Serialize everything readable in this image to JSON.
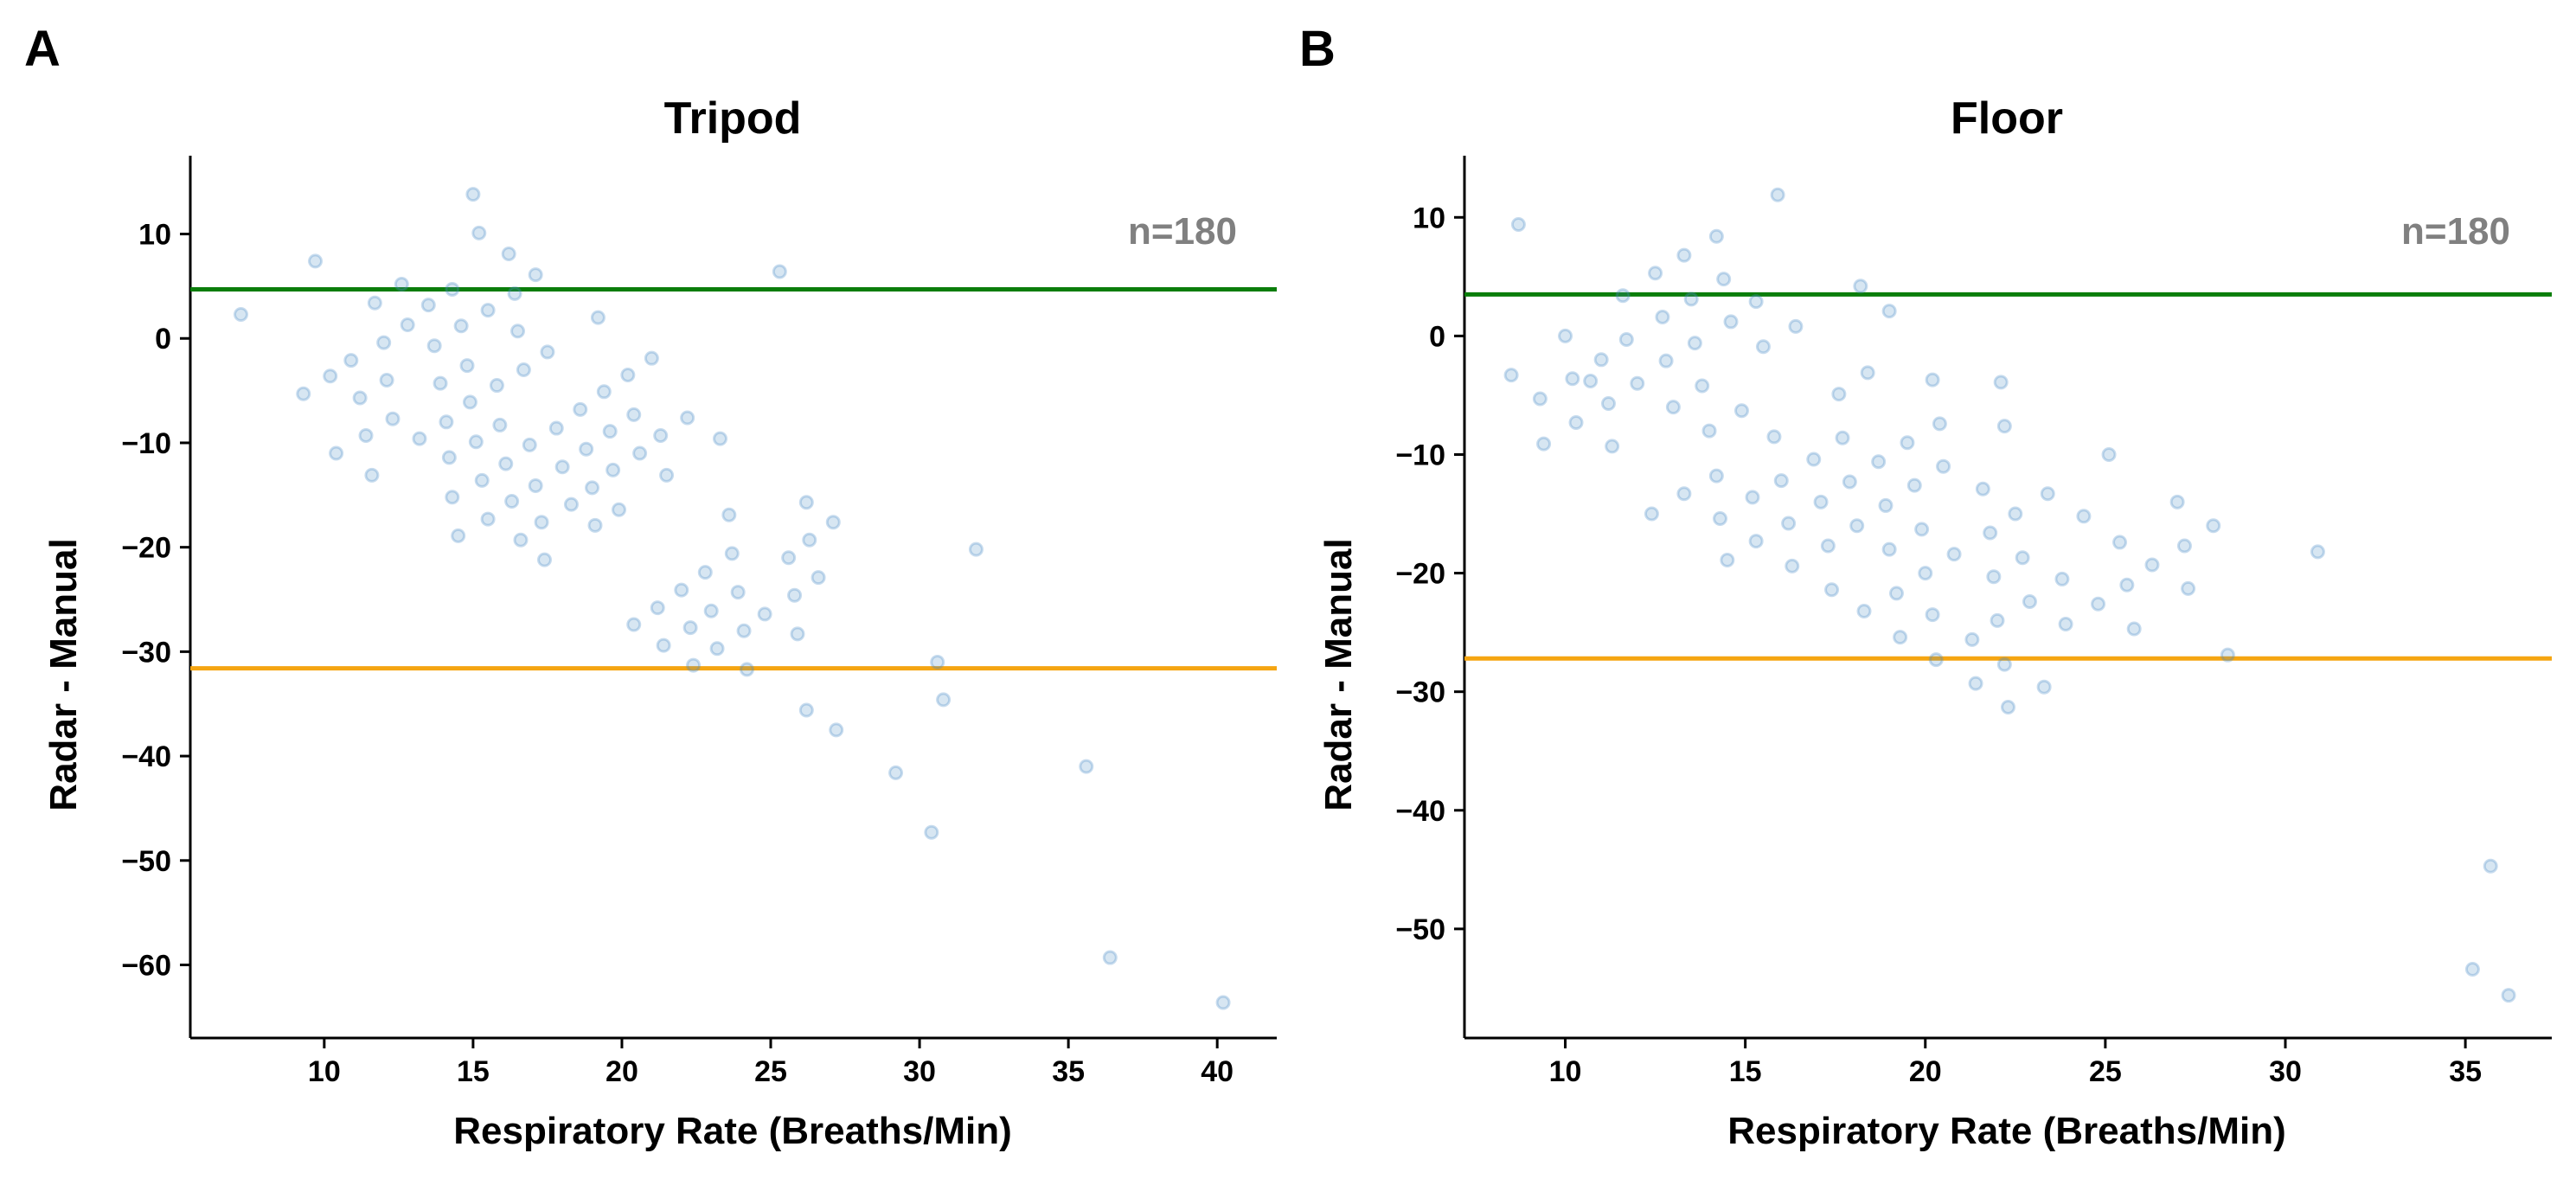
{
  "colors": {
    "points": "#4a8cc6",
    "upper_line": "#0a7d0a",
    "lower_line": "#f5a511",
    "annotation": "#808080",
    "axis": "#000000"
  },
  "chart_data": [
    {
      "panel_letter": "A",
      "type": "scatter",
      "title": "Tripod",
      "xlabel": "Respiratory Rate (Breaths/Min)",
      "ylabel": "Radar - Manual",
      "xlim": [
        5.5,
        42
      ],
      "ylim": [
        -67,
        17.5
      ],
      "xticks": [
        10,
        15,
        20,
        25,
        30,
        35,
        40
      ],
      "yticks": [
        10,
        0,
        -10,
        -20,
        -30,
        -40,
        -50,
        -60
      ],
      "grid": false,
      "annotation": "n=180",
      "upper_limit": 4.7,
      "lower_limit": -31.6,
      "points": [
        [
          7.2,
          2.3
        ],
        [
          9.3,
          -5.3
        ],
        [
          9.7,
          7.4
        ],
        [
          10.2,
          -3.6
        ],
        [
          10.4,
          -11
        ],
        [
          10.9,
          -2.1
        ],
        [
          11.2,
          -5.7
        ],
        [
          11.4,
          -9.3
        ],
        [
          11.6,
          -13.1
        ],
        [
          11.7,
          3.4
        ],
        [
          12,
          -0.4
        ],
        [
          12.1,
          -4
        ],
        [
          12.3,
          -7.7
        ],
        [
          12.6,
          5.2
        ],
        [
          12.8,
          1.3
        ],
        [
          13.2,
          -9.6
        ],
        [
          13.5,
          3.2
        ],
        [
          13.7,
          -0.7
        ],
        [
          13.9,
          -4.3
        ],
        [
          14.1,
          -8
        ],
        [
          14.2,
          -11.4
        ],
        [
          14.3,
          -15.2
        ],
        [
          14.3,
          4.7
        ],
        [
          14.5,
          -18.9
        ],
        [
          14.6,
          1.2
        ],
        [
          14.8,
          -2.6
        ],
        [
          14.9,
          -6.1
        ],
        [
          15,
          13.8
        ],
        [
          15.1,
          -9.9
        ],
        [
          15.2,
          10.1
        ],
        [
          15.3,
          -13.6
        ],
        [
          15.5,
          -17.3
        ],
        [
          15.5,
          2.7
        ],
        [
          15.8,
          -4.5
        ],
        [
          15.9,
          -8.3
        ],
        [
          16.1,
          -12
        ],
        [
          16.2,
          8.1
        ],
        [
          16.3,
          -15.6
        ],
        [
          16.4,
          4.3
        ],
        [
          16.6,
          -19.3
        ],
        [
          16.5,
          0.7
        ],
        [
          16.7,
          -3
        ],
        [
          16.9,
          -10.2
        ],
        [
          17.1,
          -14.1
        ],
        [
          17.1,
          6.1
        ],
        [
          17.3,
          -17.6
        ],
        [
          17.4,
          -21.2
        ],
        [
          17.5,
          -1.3
        ],
        [
          17.8,
          -8.6
        ],
        [
          18,
          -12.3
        ],
        [
          18.3,
          -15.9
        ],
        [
          18.6,
          -6.8
        ],
        [
          18.8,
          -10.6
        ],
        [
          19,
          -14.3
        ],
        [
          19.1,
          -17.9
        ],
        [
          19.2,
          2
        ],
        [
          19.4,
          -5.1
        ],
        [
          19.6,
          -8.9
        ],
        [
          19.7,
          -12.6
        ],
        [
          19.9,
          -16.4
        ],
        [
          20.2,
          -3.5
        ],
        [
          20.4,
          -7.3
        ],
        [
          20.6,
          -11
        ],
        [
          20.4,
          -27.4
        ],
        [
          21,
          -1.9
        ],
        [
          21.2,
          -25.8
        ],
        [
          21.3,
          -9.3
        ],
        [
          21.4,
          -29.4
        ],
        [
          21.5,
          -13.1
        ],
        [
          22,
          -24.1
        ],
        [
          22.2,
          -7.6
        ],
        [
          22.3,
          -27.7
        ],
        [
          22.4,
          -31.3
        ],
        [
          22.8,
          -22.4
        ],
        [
          23,
          -26.1
        ],
        [
          23.2,
          -29.7
        ],
        [
          23.3,
          -9.6
        ],
        [
          23.6,
          -16.9
        ],
        [
          23.7,
          -20.6
        ],
        [
          23.9,
          -24.3
        ],
        [
          24.1,
          -28
        ],
        [
          24.2,
          -31.7
        ],
        [
          24.8,
          -26.4
        ],
        [
          25.3,
          6.4
        ],
        [
          25.6,
          -21
        ],
        [
          25.8,
          -24.6
        ],
        [
          25.9,
          -28.3
        ],
        [
          26.2,
          -15.7
        ],
        [
          26.3,
          -19.3
        ],
        [
          26.2,
          -35.6
        ],
        [
          26.6,
          -22.9
        ],
        [
          27.1,
          -17.6
        ],
        [
          27.2,
          -37.5
        ],
        [
          29.2,
          -41.6
        ],
        [
          30.4,
          -47.3
        ],
        [
          30.6,
          -31
        ],
        [
          30.8,
          -34.6
        ],
        [
          31.9,
          -20.2
        ],
        [
          35.6,
          -41
        ],
        [
          36.4,
          -59.3
        ],
        [
          40.2,
          -63.6
        ]
      ]
    },
    {
      "panel_letter": "B",
      "type": "scatter",
      "title": "Floor",
      "xlabel": "Respiratory Rate (Breaths/Min)",
      "ylabel": "Radar - Manual",
      "xlim": [
        7.2,
        37.4
      ],
      "ylim": [
        -59.2,
        15.2
      ],
      "xticks": [
        10,
        15,
        20,
        25,
        30,
        35
      ],
      "yticks": [
        10,
        0,
        -10,
        -20,
        -30,
        -40,
        -50
      ],
      "grid": false,
      "annotation": "n=180",
      "upper_limit": 3.5,
      "lower_limit": -27.2,
      "points": [
        [
          8.5,
          -3.3
        ],
        [
          8.7,
          9.4
        ],
        [
          9.3,
          -5.3
        ],
        [
          9.4,
          -9.1
        ],
        [
          10,
          0
        ],
        [
          10.2,
          -3.6
        ],
        [
          10.3,
          -7.3
        ],
        [
          10.7,
          -3.8
        ],
        [
          11,
          -2
        ],
        [
          11.2,
          -5.7
        ],
        [
          11.3,
          -9.3
        ],
        [
          11.6,
          3.4
        ],
        [
          11.7,
          -0.3
        ],
        [
          12,
          -4
        ],
        [
          12.4,
          -15
        ],
        [
          12.5,
          5.3
        ],
        [
          12.7,
          1.6
        ],
        [
          12.8,
          -2.1
        ],
        [
          13,
          -6
        ],
        [
          13.3,
          -13.3
        ],
        [
          13.3,
          6.8
        ],
        [
          13.5,
          3.1
        ],
        [
          13.6,
          -0.6
        ],
        [
          13.8,
          -4.2
        ],
        [
          14,
          -8
        ],
        [
          14.2,
          8.4
        ],
        [
          14.2,
          -11.8
        ],
        [
          14.3,
          -15.4
        ],
        [
          14.4,
          4.8
        ],
        [
          14.5,
          -18.9
        ],
        [
          14.6,
          1.2
        ],
        [
          14.9,
          -6.3
        ],
        [
          15.2,
          -13.6
        ],
        [
          15.3,
          -17.3
        ],
        [
          15.3,
          2.9
        ],
        [
          15.5,
          -0.9
        ],
        [
          15.8,
          -8.5
        ],
        [
          15.9,
          11.9
        ],
        [
          16,
          -12.2
        ],
        [
          16.2,
          -15.8
        ],
        [
          16.3,
          -19.4
        ],
        [
          16.4,
          0.8
        ],
        [
          16.9,
          -10.4
        ],
        [
          17.1,
          -14
        ],
        [
          17.3,
          -17.7
        ],
        [
          17.4,
          -21.4
        ],
        [
          17.6,
          -4.9
        ],
        [
          17.7,
          -8.6
        ],
        [
          17.9,
          -12.3
        ],
        [
          18.1,
          -16
        ],
        [
          18.2,
          4.2
        ],
        [
          18.3,
          -23.2
        ],
        [
          18.4,
          -3.1
        ],
        [
          18.7,
          -10.6
        ],
        [
          18.9,
          -14.3
        ],
        [
          19,
          -18
        ],
        [
          19,
          2.1
        ],
        [
          19.2,
          -21.7
        ],
        [
          19.3,
          -25.4
        ],
        [
          19.5,
          -9
        ],
        [
          19.7,
          -12.6
        ],
        [
          19.9,
          -16.3
        ],
        [
          20,
          -20
        ],
        [
          20.2,
          -3.7
        ],
        [
          20.2,
          -23.5
        ],
        [
          20.3,
          -27.3
        ],
        [
          20.4,
          -7.4
        ],
        [
          20.5,
          -11
        ],
        [
          20.8,
          -18.4
        ],
        [
          21.3,
          -25.6
        ],
        [
          21.4,
          -29.3
        ],
        [
          21.6,
          -12.9
        ],
        [
          21.8,
          -16.6
        ],
        [
          21.9,
          -20.3
        ],
        [
          22,
          -24
        ],
        [
          22.1,
          -3.9
        ],
        [
          22.2,
          -27.7
        ],
        [
          22.2,
          -7.6
        ],
        [
          22.3,
          -31.3
        ],
        [
          22.5,
          -15
        ],
        [
          22.7,
          -18.7
        ],
        [
          22.9,
          -22.4
        ],
        [
          23.3,
          -29.6
        ],
        [
          23.4,
          -13.3
        ],
        [
          23.8,
          -20.5
        ],
        [
          23.9,
          -24.3
        ],
        [
          24.4,
          -15.2
        ],
        [
          24.8,
          -22.6
        ],
        [
          25.1,
          -10
        ],
        [
          25.4,
          -17.4
        ],
        [
          25.6,
          -21
        ],
        [
          25.8,
          -24.7
        ],
        [
          26.3,
          -19.3
        ],
        [
          27,
          -14
        ],
        [
          27.2,
          -17.7
        ],
        [
          27.3,
          -21.3
        ],
        [
          28,
          -16
        ],
        [
          28.4,
          -26.9
        ],
        [
          30.9,
          -18.2
        ],
        [
          35.2,
          -53.4
        ],
        [
          35.7,
          -44.7
        ],
        [
          36.2,
          -55.6
        ]
      ]
    }
  ]
}
